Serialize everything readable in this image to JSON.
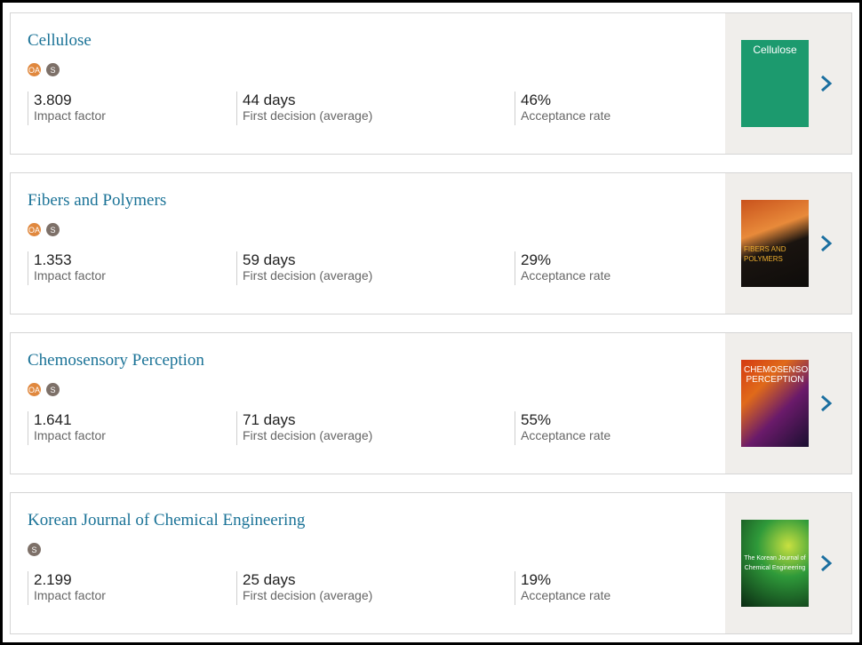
{
  "journals": [
    {
      "title": "Cellulose",
      "badges": [
        "OA",
        "S"
      ],
      "cover_text": "Cellulose",
      "metrics": [
        {
          "value": "3.809",
          "label": "Impact factor"
        },
        {
          "value": "44 days",
          "label": "First decision (average)"
        },
        {
          "value": "46%",
          "label": "Acceptance rate"
        }
      ]
    },
    {
      "title": "Fibers and Polymers",
      "badges": [
        "OA",
        "S"
      ],
      "cover_text": "FIBERS AND POLYMERS",
      "metrics": [
        {
          "value": "1.353",
          "label": "Impact factor"
        },
        {
          "value": "59 days",
          "label": "First decision (average)"
        },
        {
          "value": "29%",
          "label": "Acceptance rate"
        }
      ]
    },
    {
      "title": "Chemosensory Perception",
      "badges": [
        "OA",
        "S"
      ],
      "cover_text": "CHEMOSENSORY PERCEPTION",
      "metrics": [
        {
          "value": "1.641",
          "label": "Impact factor"
        },
        {
          "value": "71 days",
          "label": "First decision (average)"
        },
        {
          "value": "55%",
          "label": "Acceptance rate"
        }
      ]
    },
    {
      "title": "Korean Journal of Chemical Engineering",
      "badges": [
        "S"
      ],
      "cover_text": "The Korean Journal of Chemical Engineering",
      "metrics": [
        {
          "value": "2.199",
          "label": "Impact factor"
        },
        {
          "value": "25 days",
          "label": "First decision (average)"
        },
        {
          "value": "19%",
          "label": "Acceptance rate"
        }
      ]
    }
  ]
}
